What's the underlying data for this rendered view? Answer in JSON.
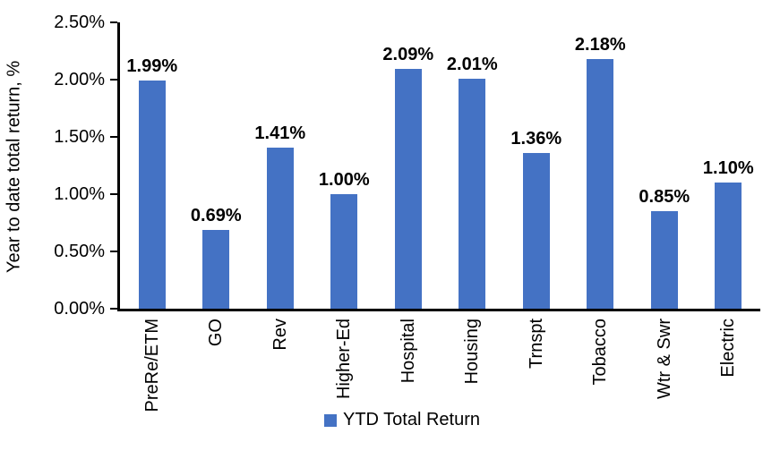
{
  "chart_data": {
    "type": "bar",
    "title": "",
    "ylabel": "Year to date total return, %",
    "xlabel": "",
    "categories": [
      "PreRe/ETM",
      "GO",
      "Rev",
      "Higher-Ed",
      "Hospital",
      "Housing",
      "Trnspt",
      "Tobacco",
      "Wtr & Swr",
      "Electric"
    ],
    "values": [
      1.99,
      0.69,
      1.41,
      1.0,
      2.09,
      2.01,
      1.36,
      2.18,
      0.85,
      1.1
    ],
    "data_labels": [
      "1.99%",
      "0.69%",
      "1.41%",
      "1.00%",
      "2.09%",
      "2.01%",
      "1.36%",
      "2.18%",
      "0.85%",
      "1.10%"
    ],
    "y_ticks": [
      "0.00%",
      "0.50%",
      "1.00%",
      "1.50%",
      "2.00%",
      "2.50%"
    ],
    "ylim": [
      0,
      2.5
    ],
    "grid": false,
    "legend_position": "bottom",
    "legend": [
      {
        "label": "YTD Total Return",
        "color": "#4472C4"
      }
    ],
    "bar_color": "#4472C4",
    "axis_color": "#000000",
    "background_color": "#ffffff"
  }
}
